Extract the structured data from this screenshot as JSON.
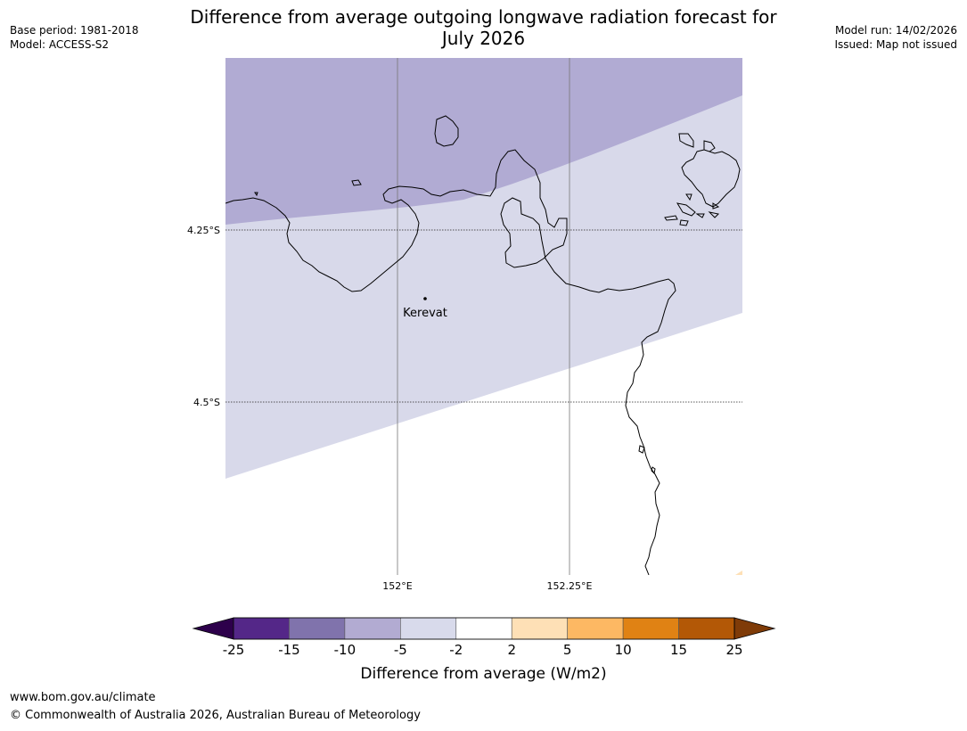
{
  "title": {
    "line1": "Difference from average outgoing longwave radiation forecast for",
    "line2": "July 2026"
  },
  "meta_left": {
    "base_period": "Base period: 1981-2018",
    "model": "Model: ACCESS-S2"
  },
  "meta_right": {
    "model_run": "Model run: 14/02/2026",
    "issued": "Issued: Map not issued"
  },
  "map": {
    "lat_labels": [
      "4.25°S",
      "4.5°S"
    ],
    "lon_labels": [
      "152°E",
      "152.25°E"
    ],
    "place": "Kerevat",
    "colors": {
      "band_-10_-5": "#b1abd3",
      "band_-5_-2": "#d8d9ea",
      "band_-2_2": "#ffffff",
      "band_2_5": "#fee0b6"
    }
  },
  "colorbar": {
    "label": "Difference from average (W/m2)",
    "ticks": [
      "-25",
      "-15",
      "-10",
      "-5",
      "-2",
      "2",
      "5",
      "10",
      "15",
      "25"
    ],
    "colors": [
      "#2d004b",
      "#542788",
      "#8073ac",
      "#b2abd2",
      "#d8daeb",
      "#ffffff",
      "#fee0b6",
      "#fdb863",
      "#e08214",
      "#b35806",
      "#7f3b08"
    ]
  },
  "footer": {
    "url": "www.bom.gov.au/climate",
    "copyright": "© Commonwealth of Australia 2026, Australian Bureau of Meteorology"
  }
}
